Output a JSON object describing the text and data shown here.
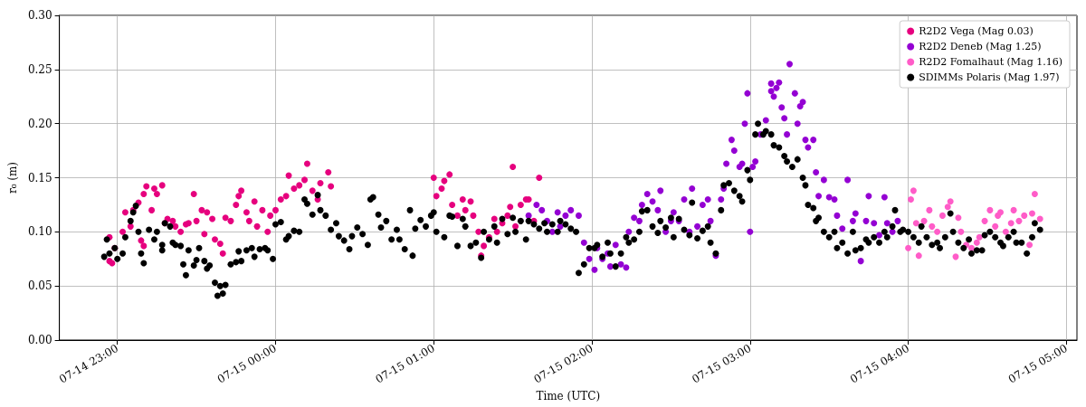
{
  "chart_data": {
    "type": "scatter",
    "xlabel": "Time (UTC)",
    "ylabel": "r₀ (m)",
    "xlim": [
      "--07-14T22:38",
      "--07-15T05:04"
    ],
    "xticks": [
      {
        "value": "--07-14T23:00",
        "label": "07-14 23:00"
      },
      {
        "value": "--07-15T00:00",
        "label": "07-15 00:00"
      },
      {
        "value": "--07-15T01:00",
        "label": "07-15 01:00"
      },
      {
        "value": "--07-15T02:00",
        "label": "07-15 02:00"
      },
      {
        "value": "--07-15T03:00",
        "label": "07-15 03:00"
      },
      {
        "value": "--07-15T04:00",
        "label": "07-15 04:00"
      },
      {
        "value": "--07-15T05:00",
        "label": "07-15 05:00"
      }
    ],
    "ylim": [
      0,
      0.3
    ],
    "yticks": [
      {
        "value": 0,
        "label": "0.00"
      },
      {
        "value": 0.05,
        "label": "0.05"
      },
      {
        "value": 0.1,
        "label": "0.10"
      },
      {
        "value": 0.15,
        "label": "0.15"
      },
      {
        "value": 0.2,
        "label": "0.20"
      },
      {
        "value": 0.25,
        "label": "0.25"
      },
      {
        "value": 0.3,
        "label": "0.30"
      }
    ],
    "grid": true,
    "legend": "top right",
    "marker": "circle",
    "series": [
      {
        "name": "R2D2 Vega (Mag 0.03)",
        "color": "#e6007e",
        "x": [
          "--07-14T22:57",
          "--07-14T22:57",
          "--07-14T22:58",
          "--07-14T22:59",
          "--07-14T23:02",
          "--07-14T23:03",
          "--07-14T23:05",
          "--07-14T23:06",
          "--07-14T23:08",
          "--07-14T23:09",
          "--07-14T23:10",
          "--07-14T23:10",
          "--07-14T23:11",
          "--07-14T23:13",
          "--07-14T23:14",
          "--07-14T23:15",
          "--07-14T23:17",
          "--07-14T23:18",
          "--07-14T23:19",
          "--07-14T23:21",
          "--07-14T23:22",
          "--07-14T23:24",
          "--07-14T23:26",
          "--07-14T23:27",
          "--07-14T23:29",
          "--07-14T23:30",
          "--07-14T23:32",
          "--07-14T23:33",
          "--07-14T23:34",
          "--07-14T23:36",
          "--07-14T23:37",
          "--07-14T23:39",
          "--07-14T23:40",
          "--07-14T23:41",
          "--07-14T23:43",
          "--07-14T23:45",
          "--07-14T23:46",
          "--07-14T23:47",
          "--07-14T23:49",
          "--07-14T23:50",
          "--07-14T23:52",
          "--07-14T23:53",
          "--07-14T23:55",
          "--07-14T23:57",
          "--07-14T23:58",
          "--07-15T00:00",
          "--07-15T00:02",
          "--07-15T00:04",
          "--07-15T00:05",
          "--07-15T00:07",
          "--07-15T00:09",
          "--07-15T00:11",
          "--07-15T00:12",
          "--07-15T00:14",
          "--07-15T00:16",
          "--07-15T00:17",
          "--07-15T00:20",
          "--07-15T00:21",
          "--07-15T01:00",
          "--07-15T01:01",
          "--07-15T01:03",
          "--07-15T01:04",
          "--07-15T01:06",
          "--07-15T01:07",
          "--07-15T01:09",
          "--07-15T01:11",
          "--07-15T01:12",
          "--07-15T01:14",
          "--07-15T01:15",
          "--07-15T01:17",
          "--07-15T01:18",
          "--07-15T01:19",
          "--07-15T01:21",
          "--07-15T01:23",
          "--07-15T01:24",
          "--07-15T01:26",
          "--07-15T01:28",
          "--07-15T01:29",
          "--07-15T01:30",
          "--07-15T01:31",
          "--07-15T01:33",
          "--07-15T01:35",
          "--07-15T01:36",
          "--07-15T01:38",
          "--07-15T01:40"
        ],
        "values": [
          0.095,
          0.073,
          0.071,
          0.085,
          0.1,
          0.118,
          0.105,
          0.12,
          0.127,
          0.092,
          0.087,
          0.135,
          0.142,
          0.12,
          0.14,
          0.135,
          0.143,
          0.108,
          0.112,
          0.11,
          0.105,
          0.1,
          0.107,
          0.108,
          0.135,
          0.11,
          0.12,
          0.098,
          0.118,
          0.112,
          0.093,
          0.089,
          0.08,
          0.113,
          0.11,
          0.125,
          0.133,
          0.138,
          0.118,
          0.11,
          0.128,
          0.105,
          0.12,
          0.1,
          0.115,
          0.12,
          0.13,
          0.133,
          0.152,
          0.14,
          0.143,
          0.148,
          0.163,
          0.138,
          0.13,
          0.145,
          0.155,
          0.142,
          0.15,
          0.133,
          0.14,
          0.147,
          0.153,
          0.125,
          0.115,
          0.13,
          0.12,
          0.128,
          0.115,
          0.1,
          0.078,
          0.087,
          0.095,
          0.112,
          0.1,
          0.108,
          0.115,
          0.123,
          0.16,
          0.105,
          0.125,
          0.13,
          0.13,
          0.11,
          0.15
        ]
      },
      {
        "name": "R2D2 Deneb (Mag 1.25)",
        "color": "#9400d3",
        "x": [
          "--07-15T01:36",
          "--07-15T01:39",
          "--07-15T01:41",
          "--07-15T01:43",
          "--07-15T01:45",
          "--07-15T01:47",
          "--07-15T01:48",
          "--07-15T01:50",
          "--07-15T01:52",
          "--07-15T01:55",
          "--07-15T01:57",
          "--07-15T01:59",
          "--07-15T02:01",
          "--07-15T02:02",
          "--07-15T02:04",
          "--07-15T02:06",
          "--07-15T02:07",
          "--07-15T02:09",
          "--07-15T02:11",
          "--07-15T02:13",
          "--07-15T02:14",
          "--07-15T02:16",
          "--07-15T02:18",
          "--07-15T02:19",
          "--07-15T02:21",
          "--07-15T02:23",
          "--07-15T02:25",
          "--07-15T02:26",
          "--07-15T02:28",
          "--07-15T02:30",
          "--07-15T02:31",
          "--07-15T02:33",
          "--07-15T02:35",
          "--07-15T02:37",
          "--07-15T02:38",
          "--07-15T02:40",
          "--07-15T02:42",
          "--07-15T02:44",
          "--07-15T02:45",
          "--07-15T02:47",
          "--07-15T02:49",
          "--07-15T02:50",
          "--07-15T02:51",
          "--07-15T02:53",
          "--07-15T02:54",
          "--07-15T02:56",
          "--07-15T02:57",
          "--07-15T02:58",
          "--07-15T02:59",
          "--07-15T03:00",
          "--07-15T03:01",
          "--07-15T03:02",
          "--07-15T03:04",
          "--07-15T03:06",
          "--07-15T03:08",
          "--07-15T03:08",
          "--07-15T03:09",
          "--07-15T03:10",
          "--07-15T03:11",
          "--07-15T03:12",
          "--07-15T03:13",
          "--07-15T03:14",
          "--07-15T03:15",
          "--07-15T03:17",
          "--07-15T03:18",
          "--07-15T03:19",
          "--07-15T03:20",
          "--07-15T03:21",
          "--07-15T03:22",
          "--07-15T03:24",
          "--07-15T03:25",
          "--07-15T03:26",
          "--07-15T03:28",
          "--07-15T03:30",
          "--07-15T03:32",
          "--07-15T03:33",
          "--07-15T03:35",
          "--07-15T03:37",
          "--07-15T03:39",
          "--07-15T03:40",
          "--07-15T03:42",
          "--07-15T03:44",
          "--07-15T03:45",
          "--07-15T03:47",
          "--07-15T03:49",
          "--07-15T03:51",
          "--07-15T03:52",
          "--07-15T03:54",
          "--07-15T03:56"
        ],
        "values": [
          0.115,
          0.125,
          0.12,
          0.11,
          0.1,
          0.118,
          0.105,
          0.115,
          0.12,
          0.115,
          0.09,
          0.075,
          0.065,
          0.085,
          0.075,
          0.08,
          0.068,
          0.088,
          0.07,
          0.067,
          0.1,
          0.113,
          0.11,
          0.125,
          0.135,
          0.128,
          0.12,
          0.138,
          0.1,
          0.11,
          0.118,
          0.11,
          0.13,
          0.1,
          0.14,
          0.105,
          0.125,
          0.13,
          0.11,
          0.078,
          0.13,
          0.14,
          0.163,
          0.185,
          0.175,
          0.16,
          0.163,
          0.2,
          0.228,
          0.1,
          0.16,
          0.165,
          0.19,
          0.203,
          0.237,
          0.23,
          0.225,
          0.233,
          0.238,
          0.215,
          0.205,
          0.19,
          0.255,
          0.228,
          0.2,
          0.216,
          0.22,
          0.185,
          0.178,
          0.185,
          0.155,
          0.133,
          0.148,
          0.132,
          0.13,
          0.115,
          0.103,
          0.148,
          0.11,
          0.117,
          0.073,
          0.11,
          0.133,
          0.108,
          0.097,
          0.132,
          0.108,
          0.1,
          0.11
        ]
      },
      {
        "name": "R2D2 Fomalhaut (Mag 1.16)",
        "color": "#ff5cc8",
        "x": [
          "--07-15T04:00",
          "--07-15T04:01",
          "--07-15T04:02",
          "--07-15T04:03",
          "--07-15T04:04",
          "--07-15T04:06",
          "--07-15T04:08",
          "--07-15T04:09",
          "--07-15T04:11",
          "--07-15T04:13",
          "--07-15T04:15",
          "--07-15T04:16",
          "--07-15T04:18",
          "--07-15T04:19",
          "--07-15T04:20",
          "--07-15T04:22",
          "--07-15T04:24",
          "--07-15T04:26",
          "--07-15T04:27",
          "--07-15T04:29",
          "--07-15T04:31",
          "--07-15T04:33",
          "--07-15T04:34",
          "--07-15T04:35",
          "--07-15T04:37",
          "--07-15T04:39",
          "--07-15T04:40",
          "--07-15T04:42",
          "--07-15T04:44",
          "--07-15T04:46",
          "--07-15T04:47",
          "--07-15T04:48",
          "--07-15T04:50"
        ],
        "values": [
          0.085,
          0.13,
          0.138,
          0.108,
          0.078,
          0.11,
          0.12,
          0.105,
          0.1,
          0.115,
          0.123,
          0.128,
          0.077,
          0.113,
          0.1,
          0.088,
          0.085,
          0.09,
          0.095,
          0.11,
          0.12,
          0.105,
          0.115,
          0.118,
          0.1,
          0.108,
          0.12,
          0.11,
          0.115,
          0.088,
          0.117,
          0.135,
          0.112
        ]
      },
      {
        "name": "SDIMMs Polaris (Mag 1.97)",
        "color": "#000000",
        "x": [
          "--07-14T22:55",
          "--07-14T22:56",
          "--07-14T22:57",
          "--07-14T22:59",
          "--07-14T23:00",
          "--07-14T23:02",
          "--07-14T23:03",
          "--07-14T23:05",
          "--07-14T23:06",
          "--07-14T23:07",
          "--07-14T23:08",
          "--07-14T23:09",
          "--07-14T23:10",
          "--07-14T23:12",
          "--07-14T23:14",
          "--07-14T23:15",
          "--07-14T23:17",
          "--07-14T23:17",
          "--07-14T23:18",
          "--07-14T23:20",
          "--07-14T23:21",
          "--07-14T23:22",
          "--07-14T23:24",
          "--07-14T23:25",
          "--07-14T23:26",
          "--07-14T23:27",
          "--07-14T23:29",
          "--07-14T23:30",
          "--07-14T23:31",
          "--07-14T23:33",
          "--07-14T23:34",
          "--07-14T23:35",
          "--07-14T23:37",
          "--07-14T23:38",
          "--07-14T23:39",
          "--07-14T23:40",
          "--07-14T23:41",
          "--07-14T23:43",
          "--07-14T23:45",
          "--07-14T23:46",
          "--07-14T23:47",
          "--07-14T23:49",
          "--07-14T23:51",
          "--07-14T23:52",
          "--07-14T23:54",
          "--07-14T23:56",
          "--07-14T23:57",
          "--07-14T23:59",
          "--07-15T00:00",
          "--07-15T00:02",
          "--07-15T00:04",
          "--07-15T00:05",
          "--07-15T00:07",
          "--07-15T00:09",
          "--07-15T00:11",
          "--07-15T00:12",
          "--07-15T00:14",
          "--07-15T00:16",
          "--07-15T00:17",
          "--07-15T00:19",
          "--07-15T00:21",
          "--07-15T00:23",
          "--07-15T00:24",
          "--07-15T00:26",
          "--07-15T00:28",
          "--07-15T00:29",
          "--07-15T00:31",
          "--07-15T00:33",
          "--07-15T00:35",
          "--07-15T00:36",
          "--07-15T00:37",
          "--07-15T00:39",
          "--07-15T00:40",
          "--07-15T00:42",
          "--07-15T00:44",
          "--07-15T00:46",
          "--07-15T00:47",
          "--07-15T00:49",
          "--07-15T00:51",
          "--07-15T00:52",
          "--07-15T00:53",
          "--07-15T00:55",
          "--07-15T00:57",
          "--07-15T00:59",
          "--07-15T01:00",
          "--07-15T01:01",
          "--07-15T01:04",
          "--07-15T01:06",
          "--07-15T01:07",
          "--07-15T01:09",
          "--07-15T01:11",
          "--07-15T01:12",
          "--07-15T01:14",
          "--07-15T01:16",
          "--07-15T01:18",
          "--07-15T01:19",
          "--07-15T01:21",
          "--07-15T01:23",
          "--07-15T01:24",
          "--07-15T01:26",
          "--07-15T01:28",
          "--07-15T01:30",
          "--07-15T01:31",
          "--07-15T01:33",
          "--07-15T01:35",
          "--07-15T01:36",
          "--07-15T01:38",
          "--07-15T01:40",
          "--07-15T01:42",
          "--07-15T01:43",
          "--07-15T01:45",
          "--07-15T01:47",
          "--07-15T01:48",
          "--07-15T01:50",
          "--07-15T01:52",
          "--07-15T01:54",
          "--07-15T01:55",
          "--07-15T01:57",
          "--07-15T01:59",
          "--07-15T02:01",
          "--07-15T02:02",
          "--07-15T02:04",
          "--07-15T02:06",
          "--07-15T02:07",
          "--07-15T02:09",
          "--07-15T02:11",
          "--07-15T02:13",
          "--07-15T02:14",
          "--07-15T02:16",
          "--07-15T02:18",
          "--07-15T02:19",
          "--07-15T02:21",
          "--07-15T02:23",
          "--07-15T02:25",
          "--07-15T02:26",
          "--07-15T02:28",
          "--07-15T02:30",
          "--07-15T02:31",
          "--07-15T02:33",
          "--07-15T02:35",
          "--07-15T02:37",
          "--07-15T02:38",
          "--07-15T02:40",
          "--07-15T02:42",
          "--07-15T02:44",
          "--07-15T02:45",
          "--07-15T02:47",
          "--07-15T02:49",
          "--07-15T02:50",
          "--07-15T02:52",
          "--07-15T02:54",
          "--07-15T02:56",
          "--07-15T02:57",
          "--07-15T02:59",
          "--07-15T03:00",
          "--07-15T03:02",
          "--07-15T03:03",
          "--07-15T03:05",
          "--07-15T03:06",
          "--07-15T03:08",
          "--07-15T03:09",
          "--07-15T03:11",
          "--07-15T03:13",
          "--07-15T03:14",
          "--07-15T03:16",
          "--07-15T03:18",
          "--07-15T03:20",
          "--07-15T03:21",
          "--07-15T03:22",
          "--07-15T03:24",
          "--07-15T03:25",
          "--07-15T03:26",
          "--07-15T03:28",
          "--07-15T03:30",
          "--07-15T03:32",
          "--07-15T03:33",
          "--07-15T03:35",
          "--07-15T03:37",
          "--07-15T03:39",
          "--07-15T03:40",
          "--07-15T03:42",
          "--07-15T03:44",
          "--07-15T03:45",
          "--07-15T03:47",
          "--07-15T03:49",
          "--07-15T03:51",
          "--07-15T03:52",
          "--07-15T03:54",
          "--07-15T03:55",
          "--07-15T03:57",
          "--07-15T03:58",
          "--07-15T04:00",
          "--07-15T04:02",
          "--07-15T04:04",
          "--07-15T04:05",
          "--07-15T04:07",
          "--07-15T04:09",
          "--07-15T04:11",
          "--07-15T04:12",
          "--07-15T04:14",
          "--07-15T04:16",
          "--07-15T04:17",
          "--07-15T04:19",
          "--07-15T04:21",
          "--07-15T04:23",
          "--07-15T04:24",
          "--07-15T04:26",
          "--07-15T04:28",
          "--07-15T04:29",
          "--07-15T04:31",
          "--07-15T04:33",
          "--07-15T04:35",
          "--07-15T04:36",
          "--07-15T04:38",
          "--07-15T04:40",
          "--07-15T04:41",
          "--07-15T04:43",
          "--07-15T04:45",
          "--07-15T04:47",
          "--07-15T04:48",
          "--07-15T04:50"
        ],
        "values": [
          0.077,
          0.093,
          0.08,
          0.085,
          0.075,
          0.08,
          0.095,
          0.11,
          0.118,
          0.124,
          0.1,
          0.08,
          0.071,
          0.102,
          0.093,
          0.1,
          0.083,
          0.088,
          0.108,
          0.105,
          0.09,
          0.088,
          0.087,
          0.07,
          0.06,
          0.083,
          0.069,
          0.074,
          0.085,
          0.073,
          0.066,
          0.069,
          0.053,
          0.041,
          0.05,
          0.043,
          0.051,
          0.07,
          0.072,
          0.082,
          0.073,
          0.083,
          0.085,
          0.077,
          0.084,
          0.085,
          0.083,
          0.075,
          0.107,
          0.109,
          0.093,
          0.096,
          0.101,
          0.1,
          0.13,
          0.126,
          0.116,
          0.134,
          0.12,
          0.115,
          0.102,
          0.108,
          0.096,
          0.092,
          0.084,
          0.096,
          0.104,
          0.098,
          0.088,
          0.13,
          0.132,
          0.116,
          0.104,
          0.11,
          0.093,
          0.102,
          0.093,
          0.084,
          0.12,
          0.078,
          0.103,
          0.111,
          0.105,
          0.115,
          0.118,
          0.1,
          0.095,
          0.115,
          0.114,
          0.087,
          0.112,
          0.105,
          0.087,
          0.09,
          0.076,
          0.1,
          0.093,
          0.105,
          0.09,
          0.112,
          0.098,
          0.113,
          0.1,
          0.11,
          0.093,
          0.11,
          0.107,
          0.103,
          0.108,
          0.1,
          0.107,
          0.1,
          0.11,
          0.107,
          0.103,
          0.1,
          0.062,
          0.07,
          0.085,
          0.085,
          0.088,
          0.077,
          0.09,
          0.08,
          0.068,
          0.08,
          0.095,
          0.09,
          0.093,
          0.1,
          0.119,
          0.12,
          0.105,
          0.099,
          0.11,
          0.104,
          0.113,
          0.095,
          0.112,
          0.102,
          0.097,
          0.127,
          0.094,
          0.101,
          0.105,
          0.09,
          0.08,
          0.12,
          0.143,
          0.145,
          0.138,
          0.133,
          0.128,
          0.157,
          0.148,
          0.19,
          0.2,
          0.19,
          0.193,
          0.19,
          0.18,
          0.178,
          0.17,
          0.165,
          0.16,
          0.167,
          0.15,
          0.143,
          0.125,
          0.122,
          0.11,
          0.113,
          0.1,
          0.095,
          0.1,
          0.085,
          0.09,
          0.08,
          0.1,
          0.083,
          0.085,
          0.093,
          0.09,
          0.095,
          0.09,
          0.1,
          0.095,
          0.105,
          0.12,
          0.1,
          0.102,
          0.1,
          0.095,
          0.09,
          0.105,
          0.095,
          0.088,
          0.09,
          0.085,
          0.095,
          0.117,
          0.1,
          0.09,
          0.085,
          0.093,
          0.08,
          0.083,
          0.083,
          0.097,
          0.1,
          0.095,
          0.09,
          0.087,
          0.095,
          0.1,
          0.09,
          0.09,
          0.08,
          0.095,
          0.108,
          0.102
        ]
      }
    ]
  }
}
